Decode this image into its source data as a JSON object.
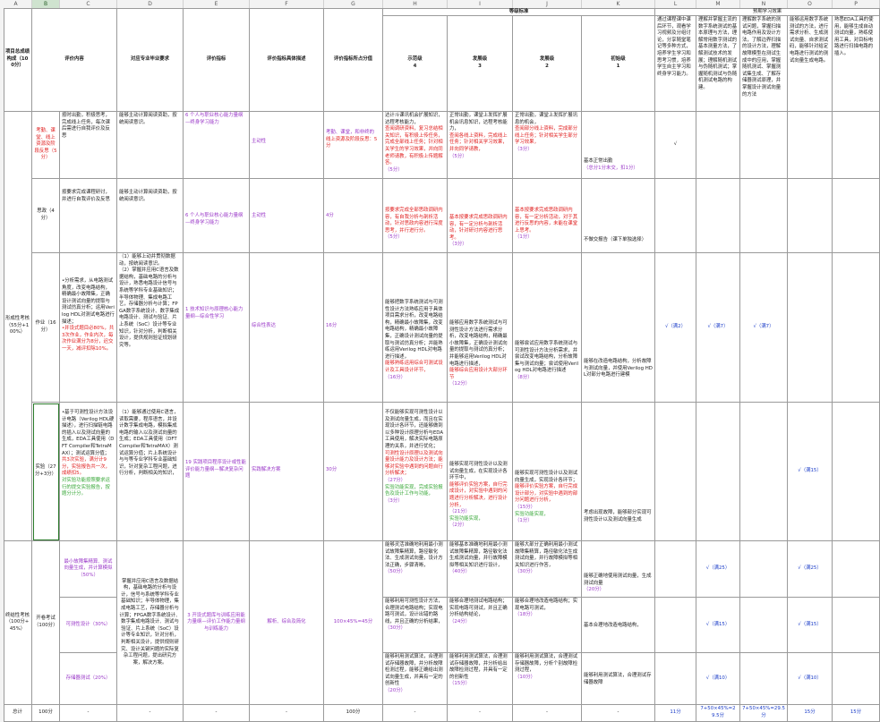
{
  "col_letters": [
    "A",
    "B",
    "C",
    "D",
    "E",
    "F",
    "G",
    "H",
    "I",
    "J",
    "K",
    "L",
    "M",
    "N",
    "O",
    "P"
  ],
  "header": {
    "col_a": "项目总成绩构成（100分）",
    "col_b": "评价内容",
    "col_d": "对应专业毕业要求",
    "col_e": "评价指标",
    "col_f": "评价指标具体描述",
    "col_g": "评价指标所占分值",
    "grade_std": "等级标准",
    "h_name": "示范级",
    "h_num": "4",
    "i_name": "发展级",
    "i_num": "3",
    "j_name": "发展级",
    "j_num": "2",
    "k_name": "初始级",
    "k_num": "1",
    "expected": "预期学习效果",
    "l_text": "通过课程课中课后环节，观看学习视频及分组讨论，分享随堂笔记等多种方式，培养学生学习和思考习惯，培养学生自主学习和终身学习能力。",
    "m_text": "理解并掌握主流的数字系统测试的基本原理与方法，理解常用数字测试的基本测量方法，了解测试技术的发展；理解随机测试与伪随机测试；掌握随机测试与伪随机测试电路的构建。",
    "n_text": "理解数字系统的测试问题，掌握扫描电路作用及设计方法，了解边界扫描的设计方法，理解故障模型在测试生成中的应用，掌握随机测试、掌握测试集生成、了解存储器测试原理，并掌握设计测试向量的方法",
    "o_text": "能够运用数字系统测试的方法，进行需求分析、生成测试向量、自求测试码，能够针对给定电路进行测试的测试向量生成电路。",
    "p_text": "熟悉EDA工具的使用，能够生成自动测试向量，熟练使用工具，对目标电路进行扫描电路的插入。"
  },
  "s1": {
    "a": "形成性考核（55分+100%）",
    "r1": {
      "b": "考勤、课堂、线上资源及阶段反思（5分）",
      "c": "按时出勤，积极思考，完成线上任务，每次课后需进行自我评价及反思",
      "d": "能够主动计算阅读资助，按统阅读意识。",
      "e": "6 个人与职业核心能力量纲—终身学习能力",
      "f": "主动性",
      "g1": "考勤、课堂，和非终的",
      "g2": "线上资源及阶段反思：5分",
      "h1": "达计斗课讯机会扩展知识，达程考核能力，",
      "h2": "查阅调研资料，复习总结相关知识，有积极上传任务，完成全部线上任务；针对相关学生的学习效果，并向同老师请教，有积极上传题解答。",
      "h3": "（5分）",
      "i1": "正常出勤，课堂上发挥扩展机会讯息知识，达程考核能力，",
      "i2": "查阅各线上资料，完成线上任务；针对相关学习效果，并向同学请教，",
      "i3": "（5分）",
      "j1": "正常出勤，课堂上发挥扩展讯息的机会，",
      "j2": "查阅部分线上资料，完成部分线上任务；针对相关学生部分学习效果，",
      "j3": "（3分）",
      "k": "基本正常出勤",
      "k2": "（总分1分未交，扣1分）",
      "l": "√"
    },
    "r2": {
      "b": "思政（4分）",
      "c": "按要求完成课程研讨，并进行自我评价及反思",
      "d": "能够主动计算阅读资助，按统阅读意识。",
      "e": "6 个人与职业核心能力量纲—终身学习能力",
      "f": "主动性",
      "g": "4分",
      "h1": "按要求完成全部思政调研内容，有自我分析与剖析活动，针对思政内容进行深度思考，并行进行分。",
      "h3": "（5分）",
      "i1": "基本按要求完成思政调研内容，有一定分析与剖析活动，针对研讨内容进行思考。",
      "i3": "（3分）",
      "j1": "基本按要求完成思政调研内容，有一定分析活动，对于其进行反思的内容，未能在课堂上思考。",
      "j3": "（1分）",
      "k": "不做交报告（课下单独选择）"
    },
    "r3": {
      "b": "作业（16分）",
      "c1": "•分析需求，从电路测试角度，改变电路结构，精确最小故障集，正确设计测试向量的提取与测试仿真分析；运用Verilog HDL对测试电路进行描述；",
      "c2": "•并设式题目必80%，共3次作业，作业内次，每次作业满分为8分，迟交一天，减评扣除10%。",
      "d": "（1）能够上动并贯彻数据动，按统阅读意识。\n（2）掌握并应用C语言及数据结构，基础电路的分析与设计，熟悉电路设计信号与系统等学科专业基础知识；半导体物理、集成电路工艺，存储器分析与计算；FPGA数字系统设计、数字集成电路设计、测试与验证、片上系统（SoC）设计等专业知识，针对分析，判断相关设计，提供规则验证规划研究等。",
      "e": "1 技术知识与原理核心能力量纲—综合性学习",
      "f": "综合性表达",
      "g": "16分",
      "h": "能够把数字系统测试与可测性设计方法熟练应用于具体项目需求分析，改变电路结构，精确最小故障集，改变电路结构，精确最小故障集，正确设计测试向量的提取与测试仿真分析；并能熟练运用Verilog HDL对电路进行描述，",
      "h2": "能够熟练运用综合可测试设计及工具设计环节，",
      "h3": "（16分）",
      "i": "能够应用数字系统测试与可测性设计方法进行需求分析，改变电路结构，精确最小故障集，正确设计测试向量的提取与测试仿真分析；并能够运用Verilog HDL对电路进行描述，",
      "i2": "能够综合应用设计大部分环节",
      "i3": "（12分）",
      "j": "能够尝试应用数字系统测试与可测性设计方法分析需求，并尝试改变电路结构，分析故障集与测试向量；尝试使用Verilog HDL对电路进行描述",
      "j3": "（8分）",
      "k": "能够在改造电路结构，分析故障与测试向量，并使用Verilog HDL对部分电路进行建模",
      "l": "√（满2）",
      "m": "√（满7）",
      "n": "√（满7）"
    },
    "r4": {
      "b": "实验（27分+3分）",
      "c1": "•基于可测性设计方法设计电路（Verilog HDL硬描述），进行扫描链电路的插入以及测试向量的生成，EDA工具使用（DFT Compiler和TetraMAX）；测试运算分值；",
      "c2": "共3次实验，满分计9分，实验报告共一次，成绩扣5。",
      "c3": "对实验功能按照要求运行的提交实验报告，按题分计分。",
      "d": "（1）能够通过使用C语言，读取需要，程序语言，并设计数字集成电路，模拟集成电路的输入以及测试向量的生成；EDA工具使用（DFT Compiler和TetraMAX）测试运算分值；片上系统设计与与等专业学科专业基础知识，针对复杂工程问题，进行分析，判断相关的知识，",
      "e": "19 实践项目程序设计或性能评价能力量纲—解决复杂问题",
      "f": "实践解决方案",
      "g": "30分",
      "h": "不仅能够实现可测性设计以及测试向量生成，而且在实现设计各环节，还能够做到以多种设计原理分析与EDA工具使用，解决实际电路原理的关系，并进行优化；",
      "h2": "可测性设计原理以及测试向量设计能力及设计方法；能够对实验中遇到的问题自行分析解决；",
      "h3": "（27分）",
      "h4": "实验功能实现，完成实验报告及设计工作与功能，",
      "h5": "（3分）",
      "i": "能够实现可测性设计以及测试向量生成，在实现设计各环节中，",
      "i2": "能够评价实验方案，自行完成设计，对实验中遇到的问题进行分析解决，进行设计分析，",
      "i3": "（21分）",
      "i4": "实验功能实现，",
      "i5": "（2分）",
      "j": "能够实现可测性设计以及测试向量生成，实现设计各环节；",
      "j2": "能够评价实验方案，自行完成设计部分，对实验中遇到的部分问题进行分析，",
      "j3": "（15分）",
      "j4": "实验功能实现，",
      "j5": "（1分）",
      "k": "考虑出现故障，能够部分实现可测性设计以及测试向量生成",
      "o": "√（满15）"
    }
  },
  "s2": {
    "a": "终结性考核（100分+45%）",
    "b": "开卷考试（100分）",
    "r1": {
      "c": "最小故障集精算、测试向量生成，并计算模拟（50%）",
      "h": "能够灵活准确地利用最小测试故障集精算，路径敏化法、生成测试向量，设计方法正确，步骤清晰，",
      "h3": "（50分）",
      "i": "能够基本准确地利用最小测试故障集精算，路径敏化法生成测试向量，并行故障模拟等相关知识进行设计，",
      "i3": "（40分）",
      "j": "能够大部分正确利用最小测试故障集精算，路径敏化法生成测试向量，并行故障模拟等相关知识进行作答，",
      "j3": "（30分）",
      "k": "能够正确地使用测试向量，生成测试向量",
      "k3": "（20分）",
      "m": "√（满25）",
      "o": "√（满25）"
    },
    "d": "掌握并应用C语言及数据结构，基础电路的分析与设计，信号与系统等学科专业基础知识；半导体物理，集成电路工艺，存储器分析与计算；FPGA数字系统设计、数字集成电路设计、测试与验证、片上系统（SoC）设计等专业知识，针对分析，判断相关设计，提供规则研究、设计关键问题的实际复杂工程问题，提出研究方案，解决方案。",
    "e": "3 开设式题库与训练应用能力量纲—评价工作能力量纲与训练能力",
    "f": "解析、综合及简化",
    "g": "100×45%=45分",
    "r2": {
      "c": "可测性设计（30%）",
      "h": "能够利用可测性设计方法，合理测试电路结构；实现电路可测试，设计出错的路线，并且正确的分析结果，",
      "h3": "（30分）",
      "i": "能够合理地测试电路结构；实现电路可测试，并且正确分析结构结论，",
      "i3": "（24分）",
      "j": "能够合理地改造电路结构；实现电路可测试，",
      "j3": "（18分）",
      "k": "基本合理地改造电路结构，",
      "m": "√（满15）",
      "o": "√（满15）"
    },
    "r3": {
      "c": "存储器测试（20%）",
      "h": "能够利用测试算法，合理测试存储器故障，并分析故障检测过程，能够正确给出测试向量生成，并具有一定的创新性",
      "h3": "（20分）",
      "i": "能够利用测试算法，合理测试存储器故障，并分析给出故障检测过程，并具有一定的创新性",
      "i3": "（15分）",
      "j": "能够利用测试算法，合理测试存储器故障，分析个别故障检测过程，",
      "j3": "（10分）",
      "k": "能够利用测试算法，合理测试存储器故障",
      "m": "√（满10）",
      "o": "√（满10）"
    }
  },
  "total": {
    "a": "总计",
    "b": "100分",
    "c": "-",
    "d": "-",
    "e": "-",
    "f": "-",
    "g": "100分",
    "h": "-",
    "i": "-",
    "j": "-",
    "k": "-",
    "l": "11分",
    "m": "7+50×45%=29.5分",
    "n": "7+50×45%=29.5分",
    "o": "15分",
    "p": "15分"
  }
}
